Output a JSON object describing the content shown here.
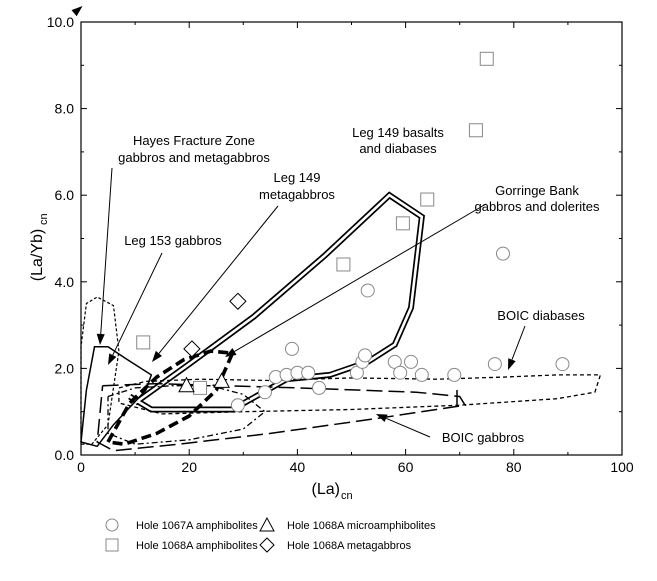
{
  "chart_data": {
    "type": "scatter",
    "xlabel": "(La)",
    "xlabel_sub": "cn",
    "ylabel": "(La/Yb)",
    "ylabel_sub": "cn",
    "xlim": [
      0,
      100
    ],
    "ylim": [
      0,
      10
    ],
    "xticks": [
      "0",
      "20",
      "40",
      "60",
      "80",
      "100"
    ],
    "yticks": [
      "0.0",
      "2.0",
      "4.0",
      "6.0",
      "8.0",
      "10.0"
    ],
    "grid": false,
    "legend_position": "bottom",
    "series": [
      {
        "name": "Hole 1067A amphibolites",
        "marker": "circle",
        "points": [
          [
            29,
            1.15
          ],
          [
            34,
            1.45
          ],
          [
            36,
            1.8
          ],
          [
            38,
            1.85
          ],
          [
            39,
            2.45
          ],
          [
            40,
            1.9
          ],
          [
            42,
            1.9
          ],
          [
            44,
            1.55
          ],
          [
            51,
            1.9
          ],
          [
            52,
            2.15
          ],
          [
            52.5,
            2.3
          ],
          [
            53,
            3.8
          ],
          [
            58,
            2.15
          ],
          [
            59,
            1.9
          ],
          [
            61,
            2.15
          ],
          [
            63,
            1.85
          ],
          [
            69,
            1.85
          ],
          [
            76.5,
            2.1
          ],
          [
            78,
            4.65
          ],
          [
            89,
            2.1
          ]
        ]
      },
      {
        "name": "Hole 1068A amphibolites",
        "marker": "square",
        "points": [
          [
            11.5,
            2.6
          ],
          [
            22,
            1.55
          ],
          [
            48.5,
            4.4
          ],
          [
            59.5,
            5.35
          ],
          [
            64,
            5.9
          ],
          [
            73,
            7.5
          ],
          [
            75,
            9.15
          ]
        ]
      },
      {
        "name": "Hole 1068A microamphibolites",
        "marker": "triangle",
        "points": [
          [
            19.5,
            1.6
          ],
          [
            26,
            1.7
          ]
        ]
      },
      {
        "name": "Hole 1068A metagabbros",
        "marker": "diamond",
        "points": [
          [
            20.5,
            2.45
          ],
          [
            29,
            3.55
          ]
        ]
      }
    ],
    "fields": [
      {
        "name": "Leg 149 basalts and diabases",
        "style": "double",
        "points": [
          [
            10,
            1.2
          ],
          [
            20,
            2.1
          ],
          [
            32,
            3.2
          ],
          [
            45,
            4.6
          ],
          [
            57,
            6.0
          ],
          [
            63,
            5.5
          ],
          [
            61,
            3.4
          ],
          [
            58,
            2.55
          ],
          [
            53,
            2.15
          ],
          [
            46,
            1.85
          ],
          [
            38,
            1.75
          ],
          [
            28,
            1.05
          ],
          [
            13,
            1.05
          ],
          [
            9,
            1.35
          ]
        ]
      },
      {
        "name": "BOIC diabases",
        "style": "short-dash",
        "points": [
          [
            7,
            1.55
          ],
          [
            12,
            1.7
          ],
          [
            22,
            1.75
          ],
          [
            35,
            1.72
          ],
          [
            50,
            1.78
          ],
          [
            66,
            1.75
          ],
          [
            78,
            1.8
          ],
          [
            88,
            1.85
          ],
          [
            96,
            1.85
          ],
          [
            95,
            1.45
          ],
          [
            88,
            1.3
          ],
          [
            70,
            1.15
          ],
          [
            50,
            1.05
          ],
          [
            30,
            1.0
          ],
          [
            15,
            0.95
          ],
          [
            7,
            1.2
          ],
          [
            7,
            1.55
          ]
        ]
      },
      {
        "name": "BOIC gabbros",
        "style": "long-dash",
        "points": [
          [
            4,
            1.6
          ],
          [
            14,
            1.65
          ],
          [
            40,
            1.55
          ],
          [
            62,
            1.45
          ],
          [
            70,
            1.35
          ],
          [
            71,
            1.15
          ],
          [
            55,
            0.85
          ],
          [
            35,
            0.5
          ],
          [
            18,
            0.25
          ],
          [
            6,
            0.1
          ],
          [
            3,
            0.3
          ],
          [
            4,
            1.6
          ]
        ]
      },
      {
        "name": "Leg 153 gabbros",
        "style": "solid",
        "points": [
          [
            0,
            0.3
          ],
          [
            1,
            1.5
          ],
          [
            2.5,
            2.5
          ],
          [
            5,
            2.5
          ],
          [
            8,
            2.25
          ],
          [
            13,
            1.85
          ],
          [
            12,
            1.5
          ],
          [
            6,
            0.7
          ],
          [
            3,
            0.2
          ],
          [
            0,
            0.3
          ]
        ]
      },
      {
        "name": "Hayes Fracture Zone gabbros and metagabbros",
        "style": "fine-dash",
        "points": [
          [
            0,
            0.25
          ],
          [
            0,
            2.5
          ],
          [
            1,
            3.5
          ],
          [
            3,
            3.65
          ],
          [
            6,
            3.45
          ],
          [
            7,
            2.4
          ],
          [
            5,
            0.7
          ],
          [
            2,
            0.25
          ],
          [
            0,
            0.25
          ]
        ]
      },
      {
        "name": "Leg 149 metagabbros",
        "style": "dash-dot",
        "points": [
          [
            5,
            1.35
          ],
          [
            10,
            1.55
          ],
          [
            17,
            1.6
          ],
          [
            24,
            1.6
          ],
          [
            30,
            1.4
          ],
          [
            34,
            1.0
          ],
          [
            30,
            0.6
          ],
          [
            20,
            0.35
          ],
          [
            10,
            0.25
          ],
          [
            5,
            0.5
          ],
          [
            5,
            1.35
          ]
        ]
      },
      {
        "name": "Gorringe Bank gabbros and dolerites",
        "style": "bold-dash",
        "points": [
          [
            5,
            0.3
          ],
          [
            9,
            1.2
          ],
          [
            14,
            1.8
          ],
          [
            19,
            2.2
          ],
          [
            24,
            2.4
          ],
          [
            28,
            2.35
          ],
          [
            25,
            1.5
          ],
          [
            20,
            0.9
          ],
          [
            14,
            0.5
          ],
          [
            8,
            0.25
          ],
          [
            5,
            0.3
          ]
        ]
      }
    ],
    "annotations": [
      {
        "text": "Leg 149 basalts",
        "key": "leg149basalts1"
      },
      {
        "text": "and diabases",
        "key": "leg149basalts2"
      },
      {
        "text": "Hayes Fracture Zone",
        "key": "hayes1"
      },
      {
        "text": "gabbros and metagabbros",
        "key": "hayes2"
      },
      {
        "text": "Leg 149",
        "key": "leg149meta1"
      },
      {
        "text": "metagabbros",
        "key": "leg149meta2"
      },
      {
        "text": "Gorringe Bank",
        "key": "gorringe1"
      },
      {
        "text": "gabbros and dolerites",
        "key": "gorringe2"
      },
      {
        "text": "Leg 153 gabbros",
        "key": "leg153"
      },
      {
        "text": "BOIC diabases",
        "key": "boicdiab"
      },
      {
        "text": "BOIC gabbros",
        "key": "boicgab"
      }
    ]
  }
}
